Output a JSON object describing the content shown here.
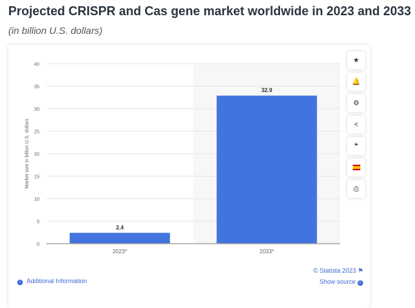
{
  "header": {
    "title": "Projected CRISPR and Cas gene market worldwide in 2023 and 2033",
    "subtitle": "(in billion U.S. dollars)"
  },
  "chart_data": {
    "type": "bar",
    "categories": [
      "2023*",
      "2033*"
    ],
    "values": [
      2.4,
      32.9
    ],
    "data_labels": [
      "2.4",
      "32.9"
    ],
    "ylabel": "Market size in billion U.S. dollars",
    "xlabel": "",
    "ylim": [
      0,
      40
    ],
    "yticks": [
      0,
      5,
      10,
      15,
      20,
      25,
      30,
      35,
      40
    ],
    "grid": true,
    "bar_color": "#4174de",
    "highlighted_category": "2033*"
  },
  "sidebar": [
    {
      "icon": "star-icon",
      "glyph": "★"
    },
    {
      "icon": "bell-icon",
      "glyph": "🔔"
    },
    {
      "icon": "gear-icon",
      "glyph": "⚙"
    },
    {
      "icon": "share-icon",
      "glyph": "<"
    },
    {
      "icon": "quote-icon",
      "glyph": "❝"
    },
    {
      "icon": "flag-spain-icon",
      "glyph": ""
    },
    {
      "icon": "print-icon",
      "glyph": "⎙"
    }
  ],
  "footer": {
    "additional_info": "Additional Information",
    "copyright": "© Statista 2023",
    "show_source": "Show source"
  }
}
